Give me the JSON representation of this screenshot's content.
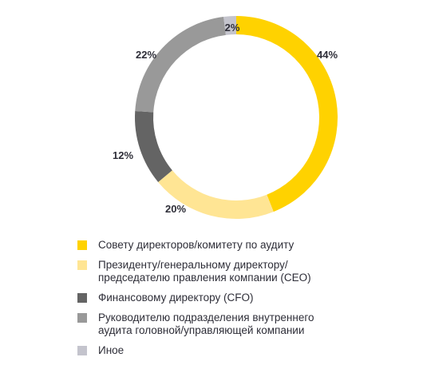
{
  "chart_data": {
    "type": "pie",
    "donut": true,
    "slices": [
      {
        "name": "Совету директоров/комитету по аудиту",
        "value": 44,
        "label": "44%",
        "color": "#ffd200"
      },
      {
        "name": "Президенту/генеральному директору/\nпредседателю правления компании (CEO)",
        "value": 20,
        "label": "20%",
        "color": "#ffe594"
      },
      {
        "name": "Финансовому директору (CFO)",
        "value": 12,
        "label": "12%",
        "color": "#646464"
      },
      {
        "name": "Руководителю подразделения внутреннего\nаудита головной/управляющей компании",
        "value": 22,
        "label": "22%",
        "color": "#999999"
      },
      {
        "name": "Иное",
        "value": 2,
        "label": "2%",
        "color": "#c4c4cd"
      }
    ],
    "legend_position": "bottom-left"
  }
}
